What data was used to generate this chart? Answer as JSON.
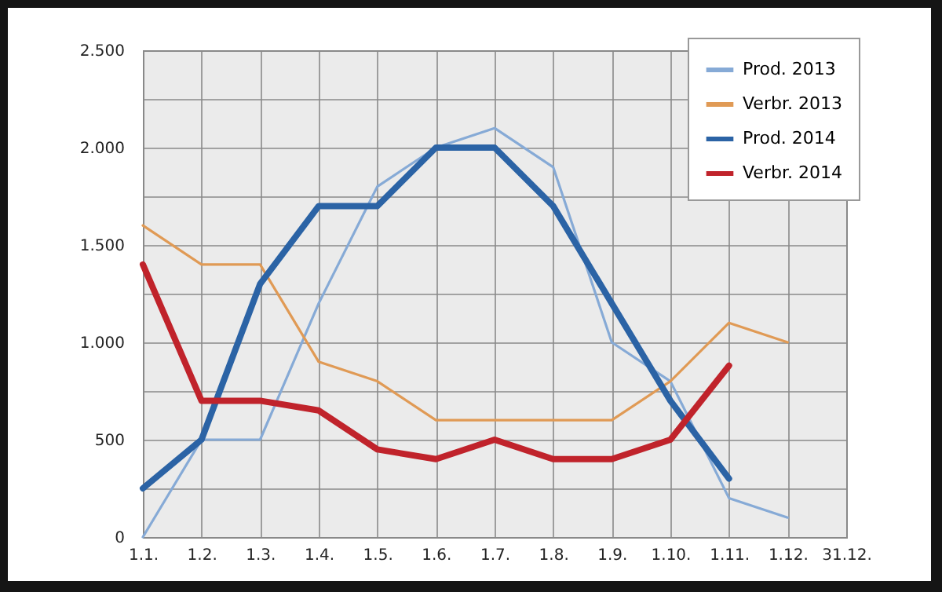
{
  "chart_data": {
    "type": "line",
    "categories": [
      "1.1.",
      "1.2.",
      "1.3.",
      "1.4.",
      "1.5.",
      "1.6.",
      "1.7.",
      "1.8.",
      "1.9.",
      "1.10.",
      "1.11.",
      "1.12.",
      "31.12."
    ],
    "series": [
      {
        "name": "Prod. 2013",
        "color": "#86aad6",
        "values": [
          0,
          500,
          500,
          1200,
          1800,
          2000,
          2100,
          1900,
          1000,
          800,
          200,
          100,
          null
        ]
      },
      {
        "name": "Verbr. 2013",
        "color": "#e09a55",
        "values": [
          1600,
          1400,
          1400,
          900,
          800,
          600,
          600,
          600,
          600,
          800,
          1100,
          1000,
          null
        ]
      },
      {
        "name": "Prod. 2014",
        "color": "#2b63a5",
        "values": [
          250,
          500,
          1300,
          1700,
          1700,
          2000,
          2000,
          1700,
          1200,
          700,
          300,
          null,
          null
        ]
      },
      {
        "name": "Verbr. 2014",
        "color": "#c0232b",
        "values": [
          1400,
          700,
          700,
          650,
          450,
          400,
          500,
          400,
          400,
          500,
          880,
          null,
          null
        ]
      }
    ],
    "ylim": [
      0,
      2500
    ],
    "yticks": [
      0,
      {
        "value": 250,
        "label": null
      },
      500,
      {
        "value": 750,
        "label": null
      },
      {
        "value": 1000,
        "label": "1.000"
      },
      {
        "value": 1250,
        "label": null
      },
      {
        "value": 1500,
        "label": "1.500"
      },
      {
        "value": 1750,
        "label": null
      },
      {
        "value": 2000,
        "label": "2.000"
      },
      {
        "value": 2250,
        "label": null
      },
      {
        "value": 2500,
        "label": "2.500"
      }
    ],
    "grid": true,
    "legend": "top right",
    "marker": "none",
    "line_style": "solid"
  }
}
